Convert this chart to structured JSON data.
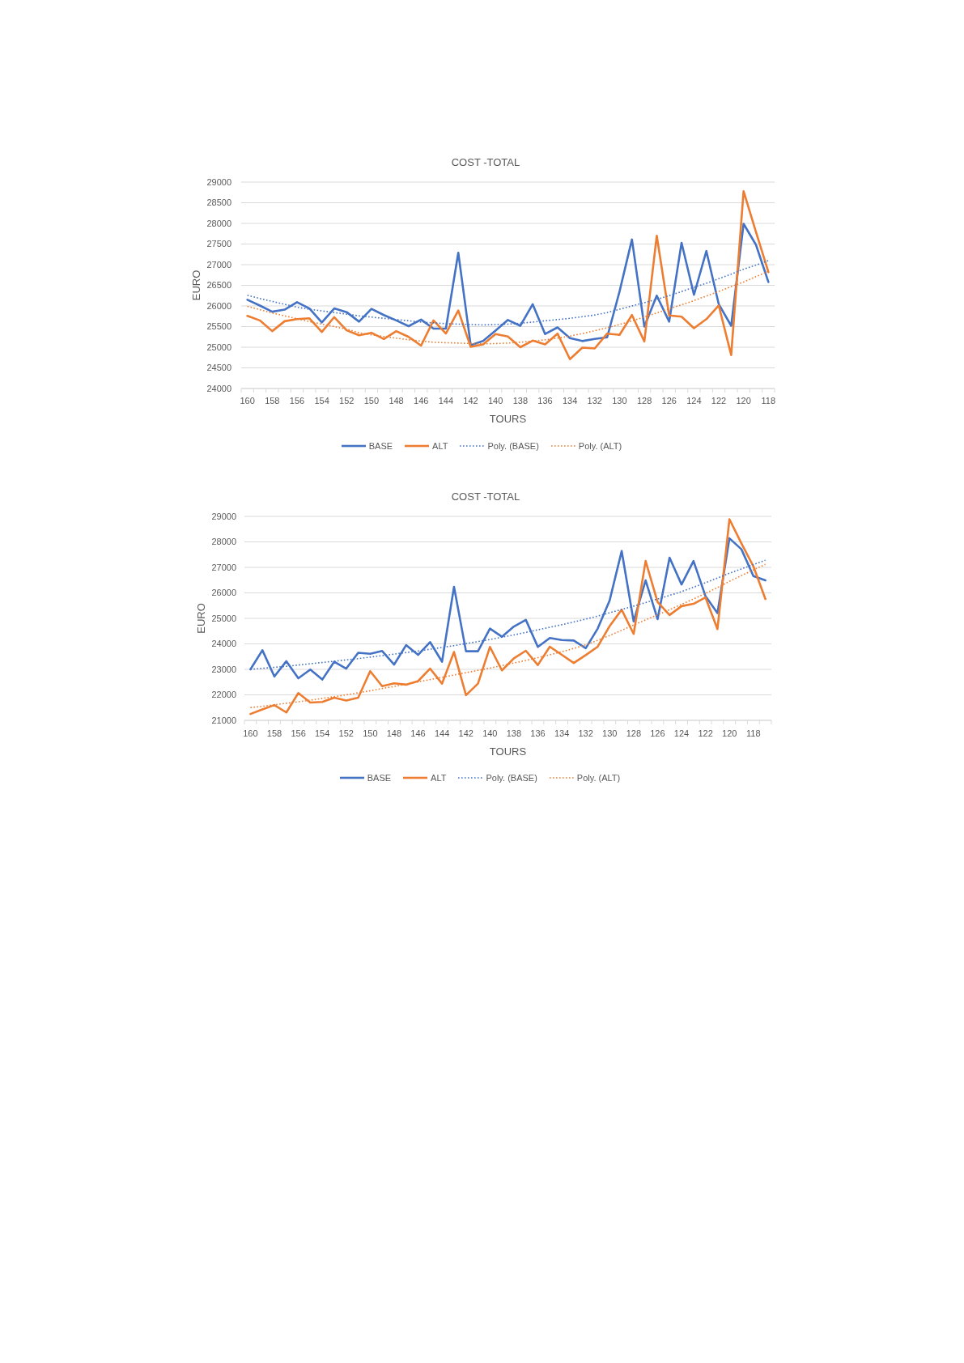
{
  "chart_data": [
    {
      "type": "line",
      "title": "COST -TOTAL",
      "xlabel": "TOURS",
      "ylabel": "EURO",
      "categories": [
        "160",
        null,
        "158",
        null,
        "156",
        null,
        "154",
        null,
        "152",
        null,
        "150",
        null,
        "148",
        null,
        "146",
        null,
        "144",
        null,
        "142",
        null,
        "140",
        null,
        "138",
        null,
        "136",
        null,
        "134",
        null,
        "132",
        null,
        "130",
        null,
        "128",
        null,
        "126",
        null,
        "124",
        null,
        "122",
        null,
        "120",
        null,
        "118"
      ],
      "ylim": [
        24000,
        29000
      ],
      "yticks": [
        24000,
        24500,
        25000,
        25500,
        26000,
        26500,
        27000,
        27500,
        28000,
        28500,
        29000
      ],
      "grid": "y",
      "legend": "bottom",
      "marker": "none",
      "series": [
        {
          "name": "BASE",
          "color": "#4472c4",
          "line_style": "solid",
          "values": [
            26150,
            26010,
            25860,
            25910,
            26090,
            25940,
            25600,
            25940,
            25850,
            25620,
            25930,
            25780,
            25650,
            25510,
            25670,
            25450,
            25450,
            27290,
            25050,
            25150,
            25400,
            25660,
            25520,
            26040,
            25320,
            25480,
            25220,
            25150,
            25200,
            25240,
            26350,
            27610,
            25500,
            26250,
            25620,
            27530,
            26270,
            27330,
            26040,
            25520,
            27990,
            27480,
            26580
          ]
        },
        {
          "name": "ALT",
          "color": "#ed7d31",
          "line_style": "solid",
          "values": [
            25760,
            25650,
            25390,
            25630,
            25680,
            25700,
            25370,
            25730,
            25410,
            25290,
            25350,
            25200,
            25390,
            25250,
            25040,
            25650,
            25330,
            25890,
            25010,
            25070,
            25320,
            25260,
            25000,
            25160,
            25070,
            25330,
            24710,
            24990,
            24970,
            25330,
            25300,
            25780,
            25140,
            27700,
            25770,
            25740,
            25460,
            25680,
            26010,
            24810,
            28780,
            27790,
            26820
          ]
        },
        {
          "name": "Poly. (BASE)",
          "color": "#4472c4",
          "line_style": "dotted",
          "values": [
            26260,
            26180,
            26110,
            26040,
            25970,
            25920,
            25880,
            25840,
            25800,
            25760,
            25730,
            25700,
            25670,
            25640,
            25610,
            25590,
            25570,
            25560,
            25550,
            25540,
            25550,
            25560,
            25580,
            25610,
            25640,
            25670,
            25700,
            25740,
            25780,
            25840,
            25920,
            26000,
            26080,
            26160,
            26250,
            26350,
            26450,
            26550,
            26660,
            26770,
            26890,
            26990,
            27100
          ]
        },
        {
          "name": "Poly. (ALT)",
          "color": "#ed7d31",
          "line_style": "dotted",
          "values": [
            25990,
            25910,
            25830,
            25760,
            25690,
            25620,
            25560,
            25500,
            25440,
            25350,
            25300,
            25260,
            25220,
            25180,
            25150,
            25120,
            25110,
            25100,
            25090,
            25080,
            25090,
            25100,
            25120,
            25150,
            25180,
            25220,
            25270,
            25330,
            25400,
            25470,
            25550,
            25640,
            25730,
            25830,
            25930,
            26030,
            26130,
            26240,
            26350,
            26470,
            26580,
            26710,
            26840
          ]
        }
      ]
    },
    {
      "type": "line",
      "title": "COST -TOTAL",
      "xlabel": "TOURS",
      "ylabel": "EURO",
      "categories": [
        "160",
        null,
        "158",
        null,
        "156",
        null,
        "154",
        null,
        "152",
        null,
        "150",
        null,
        "148",
        null,
        "146",
        null,
        "144",
        null,
        "142",
        null,
        "140",
        null,
        "138",
        null,
        "136",
        null,
        "134",
        null,
        "132",
        null,
        "130",
        null,
        "128",
        null,
        "126",
        null,
        "124",
        null,
        "122",
        null,
        "120",
        null,
        "118",
        null
      ],
      "ylim": [
        21000,
        29000
      ],
      "yticks": [
        21000,
        22000,
        23000,
        24000,
        25000,
        26000,
        27000,
        28000,
        29000
      ],
      "grid": "y",
      "legend": "bottom",
      "marker": "none",
      "series": [
        {
          "name": "BASE",
          "color": "#4472c4",
          "line_style": "solid",
          "values": [
            23000,
            23750,
            22720,
            23320,
            22650,
            22990,
            22600,
            23300,
            23030,
            23650,
            23610,
            23720,
            23190,
            23950,
            23570,
            24070,
            23300,
            26240,
            23710,
            23710,
            24600,
            24280,
            24680,
            24940,
            23880,
            24230,
            24150,
            24130,
            23830,
            24600,
            25710,
            27640,
            24880,
            26490,
            24970,
            27380,
            26330,
            27250,
            25870,
            25210,
            28140,
            27710,
            26660,
            26490
          ]
        },
        {
          "name": "ALT",
          "color": "#ed7d31",
          "line_style": "solid",
          "values": [
            21250,
            21430,
            21600,
            21310,
            22070,
            21700,
            21720,
            21890,
            21780,
            21890,
            22930,
            22340,
            22450,
            22400,
            22540,
            23030,
            22440,
            23680,
            21990,
            22440,
            23880,
            22960,
            23430,
            23730,
            23170,
            23890,
            23570,
            23250,
            23560,
            23890,
            24700,
            25340,
            24390,
            27250,
            25640,
            25130,
            25480,
            25570,
            25820,
            24580,
            28890,
            27940,
            27040,
            25760
          ]
        },
        {
          "name": "Poly. (BASE)",
          "color": "#4472c4",
          "line_style": "dotted",
          "values": [
            23000,
            23040,
            23080,
            23120,
            23170,
            23220,
            23270,
            23320,
            23370,
            23420,
            23480,
            23540,
            23600,
            23660,
            23720,
            23790,
            23860,
            23930,
            24010,
            24090,
            24170,
            24260,
            24350,
            24450,
            24550,
            24650,
            24750,
            24860,
            24970,
            25090,
            25220,
            25350,
            25480,
            25620,
            25760,
            25900,
            26050,
            26220,
            26400,
            26580,
            26770,
            26940,
            27110,
            27280
          ]
        },
        {
          "name": "Poly. (ALT)",
          "color": "#ed7d31",
          "line_style": "dotted",
          "values": [
            21500,
            21550,
            21610,
            21670,
            21730,
            21790,
            21860,
            21930,
            22000,
            22080,
            22160,
            22250,
            22330,
            22420,
            22510,
            22600,
            22690,
            22780,
            22870,
            22960,
            23050,
            23150,
            23250,
            23350,
            23460,
            23570,
            23690,
            23820,
            23960,
            24140,
            24330,
            24530,
            24740,
            24940,
            25140,
            25340,
            25550,
            25760,
            25980,
            26210,
            26450,
            26680,
            26900,
            27120
          ]
        }
      ]
    }
  ]
}
